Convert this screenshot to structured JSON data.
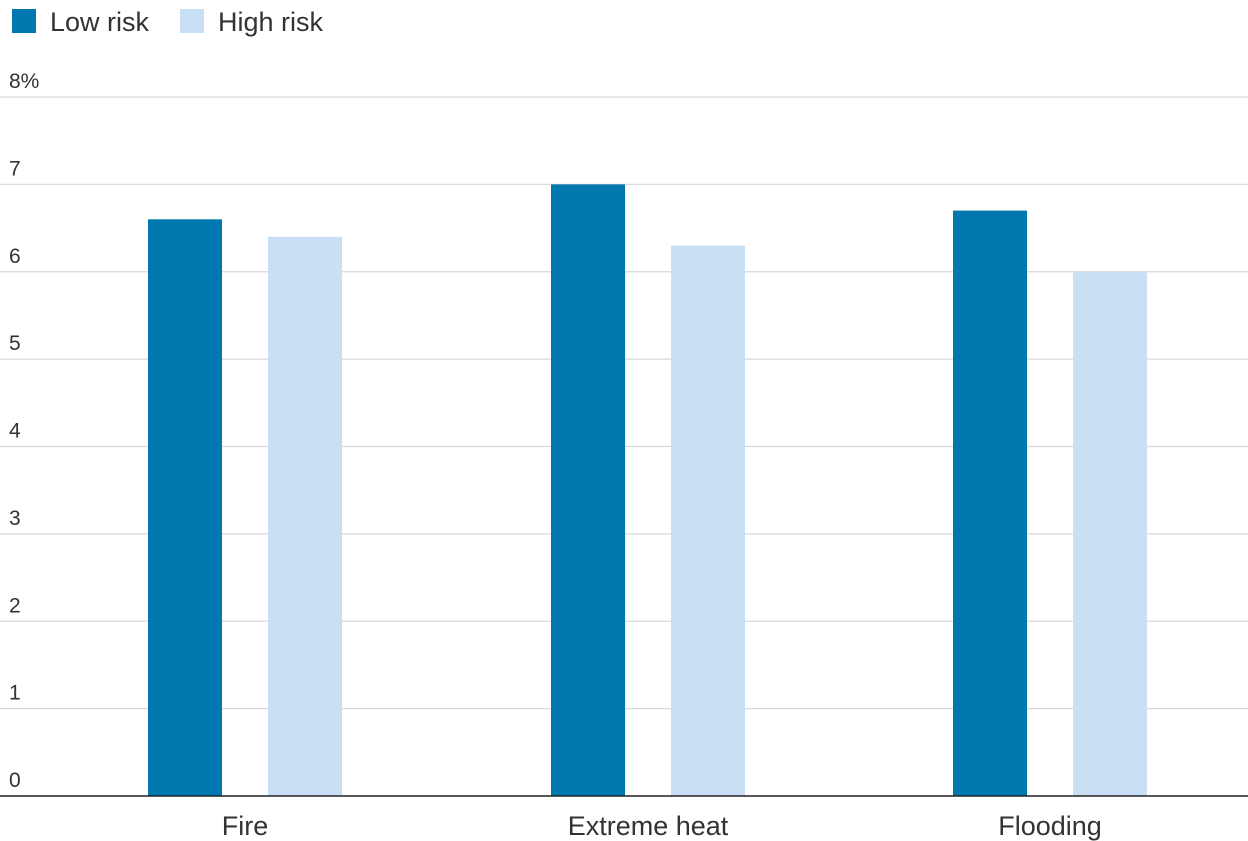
{
  "chart_data": {
    "type": "bar",
    "categories": [
      "Fire",
      "Extreme heat",
      "Flooding"
    ],
    "series": [
      {
        "name": "Low risk",
        "color": "#0077ae",
        "values": [
          6.6,
          7.0,
          6.7
        ]
      },
      {
        "name": "High risk",
        "color": "#c9e0f4",
        "values": [
          6.4,
          6.3,
          6.0
        ]
      }
    ],
    "ylim": [
      0,
      8
    ],
    "yticks": [
      0,
      1,
      2,
      3,
      4,
      5,
      6,
      7,
      8
    ],
    "ytick_labels": [
      "0",
      "1",
      "2",
      "3",
      "4",
      "5",
      "6",
      "7",
      "8%"
    ],
    "legend": "top-left",
    "grid": true
  }
}
